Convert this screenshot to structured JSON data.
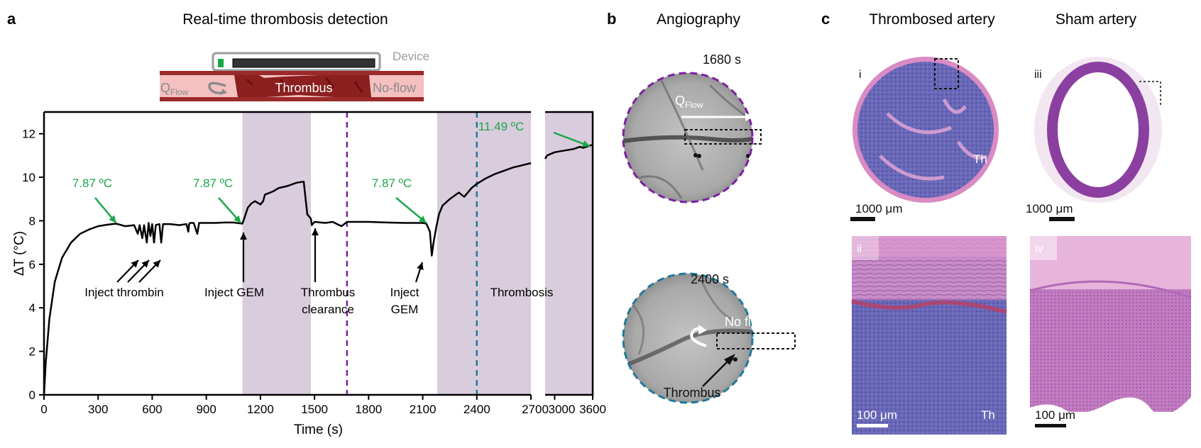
{
  "panel_a": {
    "letter": "a",
    "title": "Real-time thrombosis detection",
    "schematic": {
      "device_label": "Device",
      "q_label": "Q",
      "q_sub": "Flow",
      "thrombus_label": "Thrombus",
      "noflow_label": "No-flow"
    },
    "annotations": {
      "temp1": "7.87 ºC",
      "temp2": "7.87 ºC",
      "temp3": "7.87 ºC",
      "temp4": "11.49 ºC",
      "inject_thrombin": "Inject thrombin",
      "inject_gem_1": "Inject GEM",
      "thrombus_clearance_1": "Thrombus",
      "thrombus_clearance_2": "clearance",
      "inject_gem_2a": "Inject",
      "inject_gem_2b": "GEM",
      "thrombosis": "Thrombosis"
    },
    "colors": {
      "shade": "#d9ccdd",
      "purple_line": "#7b1fa2",
      "teal_line": "#1f7a99",
      "green": "#1aa64b",
      "trace": "#000000"
    }
  },
  "chart_data": {
    "type": "line",
    "title": "Real-time thrombosis detection",
    "xlabel": "Time (s)",
    "ylabel": "ΔT (°C)",
    "xlim": [
      0,
      3600
    ],
    "ylim": [
      0,
      13
    ],
    "axis_break": [
      2700,
      2850
    ],
    "x_ticks": [
      "0",
      "300",
      "600",
      "900",
      "1200",
      "1500",
      "1800",
      "2100",
      "2400",
      "2700",
      "3000",
      "3600"
    ],
    "y_ticks": [
      "0",
      "2",
      "4",
      "6",
      "8",
      "10",
      "12"
    ],
    "shaded_regions": [
      [
        1100,
        1480
      ],
      [
        2180,
        2700
      ],
      [
        2850,
        3600
      ]
    ],
    "vlines": [
      {
        "x": 1680,
        "color": "#7b1fa2",
        "style": "dashed"
      },
      {
        "x": 2400,
        "color": "#1f7a99",
        "style": "dashed"
      }
    ],
    "series": [
      {
        "name": "ΔT",
        "x": [
          0,
          10,
          30,
          60,
          100,
          150,
          200,
          250,
          300,
          350,
          400,
          450,
          500,
          520,
          530,
          545,
          555,
          570,
          580,
          590,
          600,
          610,
          620,
          640,
          650,
          660,
          700,
          750,
          790,
          800,
          805,
          810,
          830,
          850,
          860,
          870,
          900,
          950,
          1000,
          1050,
          1100,
          1110,
          1130,
          1150,
          1170,
          1200,
          1215,
          1225,
          1240,
          1270,
          1300,
          1350,
          1400,
          1440,
          1460,
          1480,
          1485,
          1500,
          1560,
          1600,
          1650,
          1680,
          1700,
          1800,
          1900,
          2000,
          2100,
          2120,
          2140,
          2150,
          2160,
          2175,
          2190,
          2210,
          2250,
          2300,
          2330,
          2350,
          2370,
          2400,
          2450,
          2500,
          2550,
          2600,
          2650,
          2700,
          2850,
          2880,
          2920,
          2960,
          3000,
          3100,
          3200,
          3300,
          3400,
          3450,
          3500,
          3550,
          3600
        ],
        "y": [
          0,
          1.5,
          3.5,
          5.2,
          6.3,
          7.0,
          7.4,
          7.6,
          7.75,
          7.82,
          7.87,
          7.75,
          7.8,
          7.4,
          7.8,
          7.2,
          7.8,
          7.0,
          7.9,
          7.3,
          7.85,
          7.0,
          7.8,
          7.85,
          7.0,
          7.85,
          7.85,
          7.8,
          7.85,
          7.5,
          7.85,
          7.9,
          7.9,
          7.4,
          7.9,
          7.9,
          7.9,
          7.9,
          7.92,
          7.92,
          7.87,
          8.1,
          8.6,
          8.8,
          8.9,
          8.75,
          8.9,
          9.2,
          9.25,
          9.35,
          9.5,
          9.6,
          9.75,
          9.8,
          8.3,
          8.1,
          7.8,
          7.95,
          7.9,
          7.95,
          7.75,
          7.95,
          7.95,
          7.95,
          7.92,
          7.9,
          7.9,
          7.87,
          7.5,
          6.4,
          7.0,
          7.7,
          8.3,
          8.7,
          9.0,
          9.3,
          9.1,
          9.3,
          9.5,
          9.7,
          9.95,
          10.15,
          10.3,
          10.45,
          10.55,
          10.65,
          10.85,
          11.0,
          11.05,
          11.1,
          11.15,
          11.2,
          11.25,
          11.3,
          11.4,
          11.35,
          11.4,
          11.45,
          11.49
        ]
      }
    ]
  },
  "panel_b": {
    "letter": "b",
    "title": "Angiography",
    "top_time": "1680 s",
    "q_label": "Q",
    "q_sub": "Flow",
    "bottom_time": "2400 s",
    "no_flow": "No flow",
    "thrombus": "Thrombus"
  },
  "panel_c": {
    "letter": "c",
    "title_thrombosed": "Thrombosed artery",
    "title_sham": "Sham artery",
    "label_i": "i",
    "label_ii": "ii",
    "label_iii": "iii",
    "label_iv": "iv",
    "label_th_1": "Th",
    "label_th_2": "Th",
    "scale_i": "1000 μm",
    "scale_iii": "1000 μm",
    "scale_ii": "100 μm",
    "scale_iv": "100 μm"
  }
}
